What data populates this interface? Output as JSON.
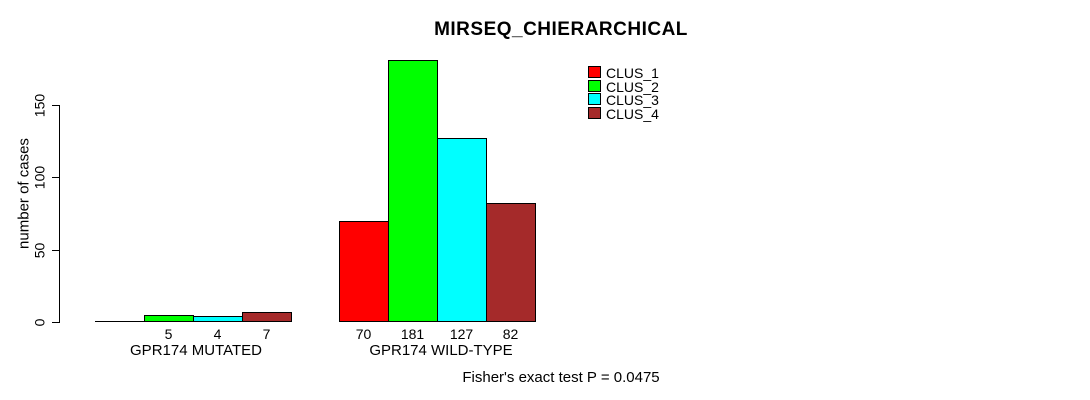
{
  "title": "MIRSEQ_CHIERARCHICAL",
  "ylabel": "number of cases",
  "footer": "Fisher's exact test P = 0.0475",
  "colors": {
    "background": "#FFFFFF",
    "text": "#000000",
    "axis": "#000000",
    "clus_1": "#FF0000",
    "clus_2": "#00FF00",
    "clus_3": "#00FFFF",
    "clus_4": "#A52A2A"
  },
  "chart_data": {
    "type": "bar",
    "title": "MIRSEQ_CHIERARCHICAL",
    "xlabel": "",
    "ylabel": "number of cases",
    "categories": [
      "GPR174 MUTATED",
      "GPR174 WILD-TYPE"
    ],
    "series": [
      {
        "name": "CLUS_1",
        "color": "#FF0000",
        "values": [
          0,
          70
        ]
      },
      {
        "name": "CLUS_2",
        "color": "#00FF00",
        "values": [
          5,
          181
        ]
      },
      {
        "name": "CLUS_3",
        "color": "#00FFFF",
        "values": [
          4,
          127
        ]
      },
      {
        "name": "CLUS_4",
        "color": "#A52A2A",
        "values": [
          7,
          82
        ]
      }
    ],
    "bar_value_labels": [
      [
        "",
        "5",
        "4",
        "7"
      ],
      [
        "70",
        "181",
        "127",
        "82"
      ]
    ],
    "yticks": [
      0,
      50,
      100,
      150
    ],
    "ylim": [
      0,
      185
    ],
    "grid": false,
    "legend_position": "top-right",
    "annotation": "Fisher's exact test P = 0.0475"
  }
}
